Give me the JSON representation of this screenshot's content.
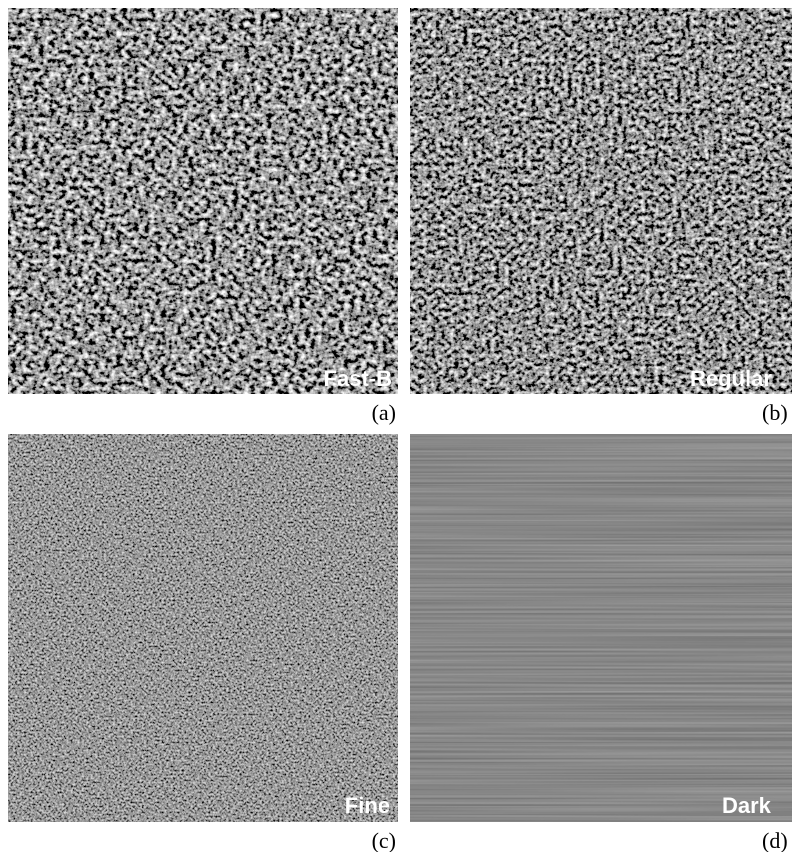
{
  "panels": [
    {
      "label": "Fast-B",
      "caption": "(a)"
    },
    {
      "label": "Regular",
      "caption": "(b)"
    },
    {
      "label": "Fine",
      "caption": "(c)"
    },
    {
      "label": "Dark",
      "caption": "(d)"
    }
  ]
}
